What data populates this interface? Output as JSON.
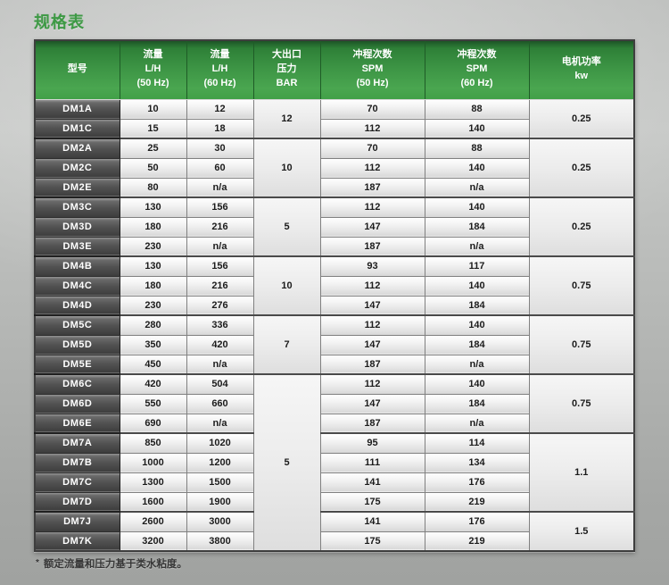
{
  "page": {
    "title": "规格表",
    "footnote_marker": "*",
    "footnote_text": "额定流量和压力基于类水粘度。"
  },
  "table": {
    "headers": [
      "型号",
      "流量\nL/H\n(50 Hz)",
      "流量\nL/H\n(60 Hz)",
      "大出口\n压力\nBAR",
      "冲程次数\nSPM\n(50 Hz)",
      "冲程次数\nSPM\n(60 Hz)",
      "电机功率\nkw"
    ],
    "rows": [
      {
        "model": "DM1A",
        "flow50": "10",
        "flow60": "12",
        "bar": "12",
        "bar_span": 2,
        "spm50": "70",
        "spm60": "88",
        "kw": "0.25",
        "kw_span": 2,
        "group_start": false
      },
      {
        "model": "DM1C",
        "flow50": "15",
        "flow60": "18",
        "spm50": "112",
        "spm60": "140",
        "group_start": false
      },
      {
        "model": "DM2A",
        "flow50": "25",
        "flow60": "30",
        "bar": "10",
        "bar_span": 3,
        "spm50": "70",
        "spm60": "88",
        "kw": "0.25",
        "kw_span": 3,
        "group_start": true
      },
      {
        "model": "DM2C",
        "flow50": "50",
        "flow60": "60",
        "spm50": "112",
        "spm60": "140",
        "group_start": false
      },
      {
        "model": "DM2E",
        "flow50": "80",
        "flow60": "n/a",
        "spm50": "187",
        "spm60": "n/a",
        "group_start": false
      },
      {
        "model": "DM3C",
        "flow50": "130",
        "flow60": "156",
        "bar": "5",
        "bar_span": 3,
        "spm50": "112",
        "spm60": "140",
        "kw": "0.25",
        "kw_span": 3,
        "group_start": true
      },
      {
        "model": "DM3D",
        "flow50": "180",
        "flow60": "216",
        "spm50": "147",
        "spm60": "184",
        "group_start": false
      },
      {
        "model": "DM3E",
        "flow50": "230",
        "flow60": "n/a",
        "spm50": "187",
        "spm60": "n/a",
        "group_start": false
      },
      {
        "model": "DM4B",
        "flow50": "130",
        "flow60": "156",
        "bar": "10",
        "bar_span": 3,
        "spm50": "93",
        "spm60": "117",
        "kw": "0.75",
        "kw_span": 3,
        "group_start": true
      },
      {
        "model": "DM4C",
        "flow50": "180",
        "flow60": "216",
        "spm50": "112",
        "spm60": "140",
        "group_start": false
      },
      {
        "model": "DM4D",
        "flow50": "230",
        "flow60": "276",
        "spm50": "147",
        "spm60": "184",
        "group_start": false
      },
      {
        "model": "DM5C",
        "flow50": "280",
        "flow60": "336",
        "bar": "7",
        "bar_span": 3,
        "spm50": "112",
        "spm60": "140",
        "kw": "0.75",
        "kw_span": 3,
        "group_start": true
      },
      {
        "model": "DM5D",
        "flow50": "350",
        "flow60": "420",
        "spm50": "147",
        "spm60": "184",
        "group_start": false
      },
      {
        "model": "DM5E",
        "flow50": "450",
        "flow60": "n/a",
        "spm50": "187",
        "spm60": "n/a",
        "group_start": false
      },
      {
        "model": "DM6C",
        "flow50": "420",
        "flow60": "504",
        "bar": "5",
        "bar_span": 9,
        "spm50": "112",
        "spm60": "140",
        "kw": "0.75",
        "kw_span": 3,
        "group_start": true
      },
      {
        "model": "DM6D",
        "flow50": "550",
        "flow60": "660",
        "spm50": "147",
        "spm60": "184",
        "group_start": false
      },
      {
        "model": "DM6E",
        "flow50": "690",
        "flow60": "n/a",
        "spm50": "187",
        "spm60": "n/a",
        "group_start": false
      },
      {
        "model": "DM7A",
        "flow50": "850",
        "flow60": "1020",
        "spm50": "95",
        "spm60": "114",
        "kw": "1.1",
        "kw_span": 4,
        "group_start": true
      },
      {
        "model": "DM7B",
        "flow50": "1000",
        "flow60": "1200",
        "spm50": "111",
        "spm60": "134",
        "group_start": false
      },
      {
        "model": "DM7C",
        "flow50": "1300",
        "flow60": "1500",
        "spm50": "141",
        "spm60": "176",
        "group_start": false
      },
      {
        "model": "DM7D",
        "flow50": "1600",
        "flow60": "1900",
        "spm50": "175",
        "spm60": "219",
        "group_start": false
      },
      {
        "model": "DM7J",
        "flow50": "2600",
        "flow60": "3000",
        "spm50": "141",
        "spm60": "176",
        "kw": "1.5",
        "kw_span": 2,
        "group_start": true
      },
      {
        "model": "DM7K",
        "flow50": "3200",
        "flow60": "3800",
        "spm50": "175",
        "spm60": "219",
        "group_start": false
      }
    ]
  }
}
